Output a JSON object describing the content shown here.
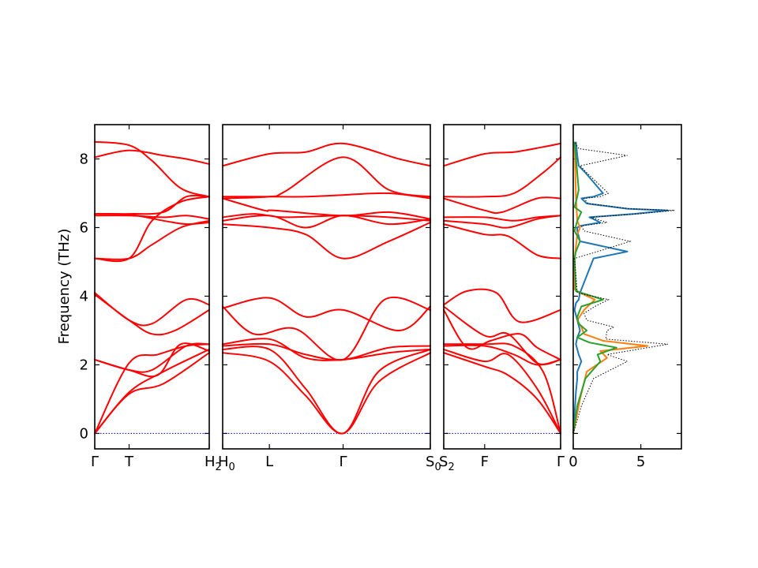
{
  "chart_data": {
    "type": "line",
    "ylabel": "Frequency (THz)",
    "ylim": [
      -0.45,
      9.0
    ],
    "yticks": [
      0,
      2,
      4,
      6,
      8
    ],
    "panels": [
      {
        "kind": "band",
        "path": [
          "Γ",
          "T",
          "H2"
        ],
        "tick_labels": [
          {
            "t": 0,
            "label": "Γ"
          },
          {
            "t": 0.3,
            "label": "T"
          },
          {
            "t": 1,
            "label": "H₂"
          }
        ],
        "series": [
          {
            "x": [
              0,
              0.3,
              0.6,
              1
            ],
            "y": [
              0,
              1.15,
              1.45,
              2.35
            ]
          },
          {
            "x": [
              0,
              0.3,
              0.6,
              1
            ],
            "y": [
              0,
              1.2,
              1.8,
              2.45
            ]
          },
          {
            "x": [
              0,
              0.3,
              0.55,
              0.8,
              1
            ],
            "y": [
              0,
              2.05,
              2.3,
              2.55,
              2.6
            ]
          },
          {
            "x": [
              0,
              0.3,
              0.5,
              0.8,
              1
            ],
            "y": [
              2.15,
              1.85,
              1.85,
              2.55,
              2.6
            ]
          },
          {
            "x": [
              0,
              0.3,
              0.55,
              0.75,
              1
            ],
            "y": [
              2.15,
              1.85,
              1.7,
              2.6,
              2.4
            ]
          },
          {
            "x": [
              0,
              0.3,
              0.5,
              0.8,
              1
            ],
            "y": [
              4.1,
              3.3,
              3.2,
              3.9,
              3.75
            ]
          },
          {
            "x": [
              0,
              0.3,
              0.5,
              0.7,
              1
            ],
            "y": [
              4.05,
              3.3,
              2.9,
              3.0,
              3.6
            ]
          },
          {
            "x": [
              0,
              0.3,
              0.5,
              0.75,
              1
            ],
            "y": [
              5.1,
              5.1,
              6.2,
              6.75,
              6.9
            ]
          },
          {
            "x": [
              0,
              0.3,
              0.5,
              0.75,
              1
            ],
            "y": [
              5.1,
              5.1,
              5.5,
              6.0,
              6.2
            ]
          },
          {
            "x": [
              0,
              0.3,
              0.6,
              0.8,
              1
            ],
            "y": [
              6.35,
              6.35,
              6.3,
              6.35,
              6.25
            ]
          },
          {
            "x": [
              0,
              0.3,
              0.6,
              0.8,
              1
            ],
            "y": [
              6.4,
              6.38,
              6.2,
              6.1,
              6.15
            ]
          },
          {
            "x": [
              0,
              0.3,
              0.6,
              0.8,
              1
            ],
            "y": [
              6.4,
              6.4,
              6.45,
              6.9,
              6.9
            ]
          },
          {
            "x": [
              0,
              0.3,
              0.6,
              0.8,
              1
            ],
            "y": [
              8.05,
              8.25,
              8.1,
              8.0,
              7.85
            ]
          },
          {
            "x": [
              0,
              0.3,
              0.5,
              0.75,
              1
            ],
            "y": [
              8.5,
              8.4,
              7.95,
              7.15,
              6.9
            ]
          }
        ]
      },
      {
        "kind": "band",
        "path": [
          "H0",
          "L",
          "Γ",
          "S0"
        ],
        "tick_labels": [
          {
            "t": 0,
            "label": "H₀"
          },
          {
            "t": 0.225,
            "label": "L"
          },
          {
            "t": 0.58,
            "label": "Γ"
          },
          {
            "t": 1,
            "label": "S₀"
          }
        ],
        "series": [
          {
            "x": [
              0,
              0.225,
              0.4,
              0.58,
              0.75,
              1
            ],
            "y": [
              2.35,
              2.1,
              1.1,
              0,
              1.5,
              2.35
            ]
          },
          {
            "x": [
              0,
              0.225,
              0.4,
              0.58,
              0.75,
              1
            ],
            "y": [
              2.45,
              2.45,
              1.3,
              0,
              1.8,
              2.45
            ]
          },
          {
            "x": [
              0,
              0.225,
              0.4,
              0.58,
              0.8,
              1
            ],
            "y": [
              2.55,
              2.6,
              2.3,
              2.15,
              2.5,
              2.55
            ]
          },
          {
            "x": [
              0,
              0.225,
              0.4,
              0.58,
              0.8,
              1
            ],
            "y": [
              2.6,
              2.75,
              2.2,
              2.15,
              2.35,
              2.45
            ]
          },
          {
            "x": [
              0,
              0.15,
              0.35,
              0.58,
              0.78,
              1
            ],
            "y": [
              3.7,
              2.9,
              3.05,
              2.15,
              3.9,
              3.6
            ]
          },
          {
            "x": [
              0,
              0.225,
              0.4,
              0.58,
              0.85,
              1
            ],
            "y": [
              3.65,
              3.95,
              3.4,
              3.6,
              3.0,
              3.7
            ]
          },
          {
            "x": [
              0,
              0.225,
              0.4,
              0.58,
              0.8,
              1
            ],
            "y": [
              6.1,
              6.0,
              5.8,
              5.1,
              5.6,
              6.15
            ]
          },
          {
            "x": [
              0,
              0.225,
              0.4,
              0.58,
              0.8,
              1
            ],
            "y": [
              6.2,
              6.35,
              6.0,
              6.35,
              6.1,
              6.25
            ]
          },
          {
            "x": [
              0,
              0.15,
              0.3,
              0.58,
              0.8,
              1
            ],
            "y": [
              6.3,
              6.4,
              6.3,
              6.35,
              6.3,
              6.2
            ]
          },
          {
            "x": [
              0,
              0.2,
              0.25,
              0.58,
              0.8,
              1
            ],
            "y": [
              6.85,
              6.5,
              6.5,
              6.35,
              6.45,
              6.25
            ]
          },
          {
            "x": [
              0,
              0.225,
              0.4,
              0.58,
              0.8,
              1
            ],
            "y": [
              6.9,
              6.9,
              6.9,
              6.95,
              7.0,
              6.85
            ]
          },
          {
            "x": [
              0,
              0.225,
              0.4,
              0.58,
              0.85,
              1
            ],
            "y": [
              7.8,
              8.15,
              8.2,
              8.45,
              8.0,
              7.8
            ]
          },
          {
            "x": [
              0,
              0.225,
              0.3,
              0.58,
              0.8,
              1
            ],
            "y": [
              6.85,
              6.9,
              7.05,
              8.05,
              7.1,
              6.9
            ]
          }
        ]
      },
      {
        "kind": "band",
        "path": [
          "S2",
          "F",
          "Γ"
        ],
        "tick_labels": [
          {
            "t": 0,
            "label": "S₂"
          },
          {
            "t": 0.35,
            "label": "F"
          },
          {
            "t": 1,
            "label": "Γ"
          }
        ],
        "series": [
          {
            "x": [
              0,
              0.35,
              0.55,
              0.8,
              1
            ],
            "y": [
              2.35,
              1.95,
              1.7,
              1.0,
              0
            ]
          },
          {
            "x": [
              0,
              0.35,
              0.55,
              0.8,
              1
            ],
            "y": [
              2.45,
              2.1,
              2.3,
              1.3,
              0
            ]
          },
          {
            "x": [
              0,
              0.35,
              0.6,
              0.8,
              1
            ],
            "y": [
              2.55,
              2.55,
              2.3,
              2.0,
              2.15
            ]
          },
          {
            "x": [
              0,
              0.35,
              0.6,
              0.85,
              1
            ],
            "y": [
              2.6,
              2.6,
              2.55,
              1.8,
              0
            ]
          },
          {
            "x": [
              0,
              0.35,
              0.55,
              0.8,
              1
            ],
            "y": [
              3.7,
              2.85,
              2.9,
              2.05,
              2.15
            ]
          },
          {
            "x": [
              0,
              0.2,
              0.4,
              0.65,
              0.8,
              1
            ],
            "y": [
              3.6,
              2.5,
              2.7,
              2.9,
              2.5,
              2.15
            ]
          },
          {
            "x": [
              0,
              0.2,
              0.45,
              0.65,
              1
            ],
            "y": [
              3.75,
              4.15,
              4.1,
              3.25,
              3.6
            ]
          },
          {
            "x": [
              0,
              0.35,
              0.55,
              0.8,
              1
            ],
            "y": [
              6.1,
              5.8,
              5.75,
              5.2,
              5.1
            ]
          },
          {
            "x": [
              0,
              0.35,
              0.55,
              0.8,
              1
            ],
            "y": [
              6.2,
              6.1,
              6.0,
              6.25,
              6.35
            ]
          },
          {
            "x": [
              0,
              0.35,
              0.6,
              0.8,
              1
            ],
            "y": [
              6.3,
              6.3,
              6.2,
              6.3,
              6.35
            ]
          },
          {
            "x": [
              0,
              0.35,
              0.5,
              0.8,
              1
            ],
            "y": [
              6.85,
              6.5,
              6.45,
              6.85,
              6.85
            ]
          },
          {
            "x": [
              0,
              0.35,
              0.6,
              0.85,
              1
            ],
            "y": [
              6.9,
              6.9,
              7.0,
              7.6,
              8.05
            ]
          },
          {
            "x": [
              0,
              0.35,
              0.6,
              0.85,
              1
            ],
            "y": [
              7.8,
              8.15,
              8.2,
              8.35,
              8.45
            ]
          }
        ]
      },
      {
        "kind": "dos",
        "xlim": [
          0,
          8
        ],
        "xticks": [
          0,
          5
        ],
        "series": [
          {
            "color": "#1f77b4",
            "style": "solid",
            "x": [
              0,
              0.2,
              0.3,
              0.3,
              0.6,
              0.4,
              0.2,
              0.3,
              0.5,
              0.3,
              0.1,
              0.2,
              0.4,
              0.5,
              1.5,
              4.0,
              0.5,
              0.3,
              0.3,
              0.5,
              2.0,
              1.2,
              4.5,
              7.0,
              4.0,
              1.0,
              0.6,
              1.5,
              2.2,
              0.9,
              0.4,
              0.3,
              0.2
            ],
            "y": [
              0,
              1.2,
              1.6,
              1.8,
              2.1,
              2.3,
              2.6,
              2.8,
              3.0,
              3.3,
              3.6,
              3.8,
              3.9,
              4.1,
              5.1,
              5.3,
              5.6,
              5.9,
              6.0,
              6.05,
              6.15,
              6.3,
              6.4,
              6.5,
              6.55,
              6.7,
              6.85,
              6.9,
              7.0,
              7.6,
              7.8,
              8.1,
              8.5
            ]
          },
          {
            "color": "#ff7f0e",
            "style": "solid",
            "x": [
              0,
              0.5,
              1.0,
              2.5,
              2.0,
              5.5,
              2.2,
              0.8,
              0.6,
              0.3,
              0.8,
              1.6,
              0.5,
              0.1,
              0.1,
              0.3,
              0.5,
              0.3,
              0.2,
              0.1
            ],
            "y": [
              0,
              1.0,
              1.8,
              2.2,
              2.4,
              2.55,
              2.7,
              2.9,
              3.1,
              3.3,
              3.6,
              3.9,
              4.1,
              4.2,
              5.1,
              5.8,
              6.0,
              6.2,
              6.9,
              8.5
            ]
          },
          {
            "color": "#2ca02c",
            "style": "solid",
            "x": [
              0,
              0.3,
              0.9,
              2.0,
              1.8,
              3.2,
              1.2,
              0.3,
              1.0,
              0.4,
              0.3,
              0.6,
              2.2,
              0.2,
              0.1,
              0.2,
              0.5,
              0.1,
              0.3,
              0.6,
              0.1,
              0.3,
              0.4,
              0.1
            ],
            "y": [
              0,
              0.8,
              1.6,
              2.1,
              2.3,
              2.5,
              2.65,
              2.8,
              3.0,
              3.2,
              3.4,
              3.7,
              3.9,
              4.15,
              5.1,
              5.3,
              5.6,
              5.9,
              6.2,
              6.45,
              6.6,
              6.9,
              7.1,
              8.5
            ]
          },
          {
            "color": "#000000",
            "style": "dotted",
            "x": [
              0,
              0.6,
              1.5,
              4.0,
              2.5,
              7.0,
              2.4,
              2.5,
              3.0,
              1.0,
              0.8,
              1.6,
              2.6,
              0.3,
              0.1,
              1.8,
              4.2,
              0.8,
              0.6,
              2.5,
              1.3,
              4.8,
              7.5,
              4.2,
              1.1,
              0.8,
              2.0,
              2.6,
              1.0,
              0.5,
              4.0,
              0.4,
              0.1
            ],
            "y": [
              0,
              0.8,
              1.6,
              2.1,
              2.3,
              2.6,
              2.75,
              3.0,
              3.1,
              3.3,
              3.5,
              3.7,
              3.9,
              4.1,
              5.1,
              5.3,
              5.6,
              5.9,
              6.05,
              6.15,
              6.3,
              6.4,
              6.5,
              6.55,
              6.7,
              6.85,
              6.9,
              7.0,
              7.6,
              7.8,
              8.1,
              8.3,
              8.5
            ]
          }
        ]
      }
    ]
  }
}
